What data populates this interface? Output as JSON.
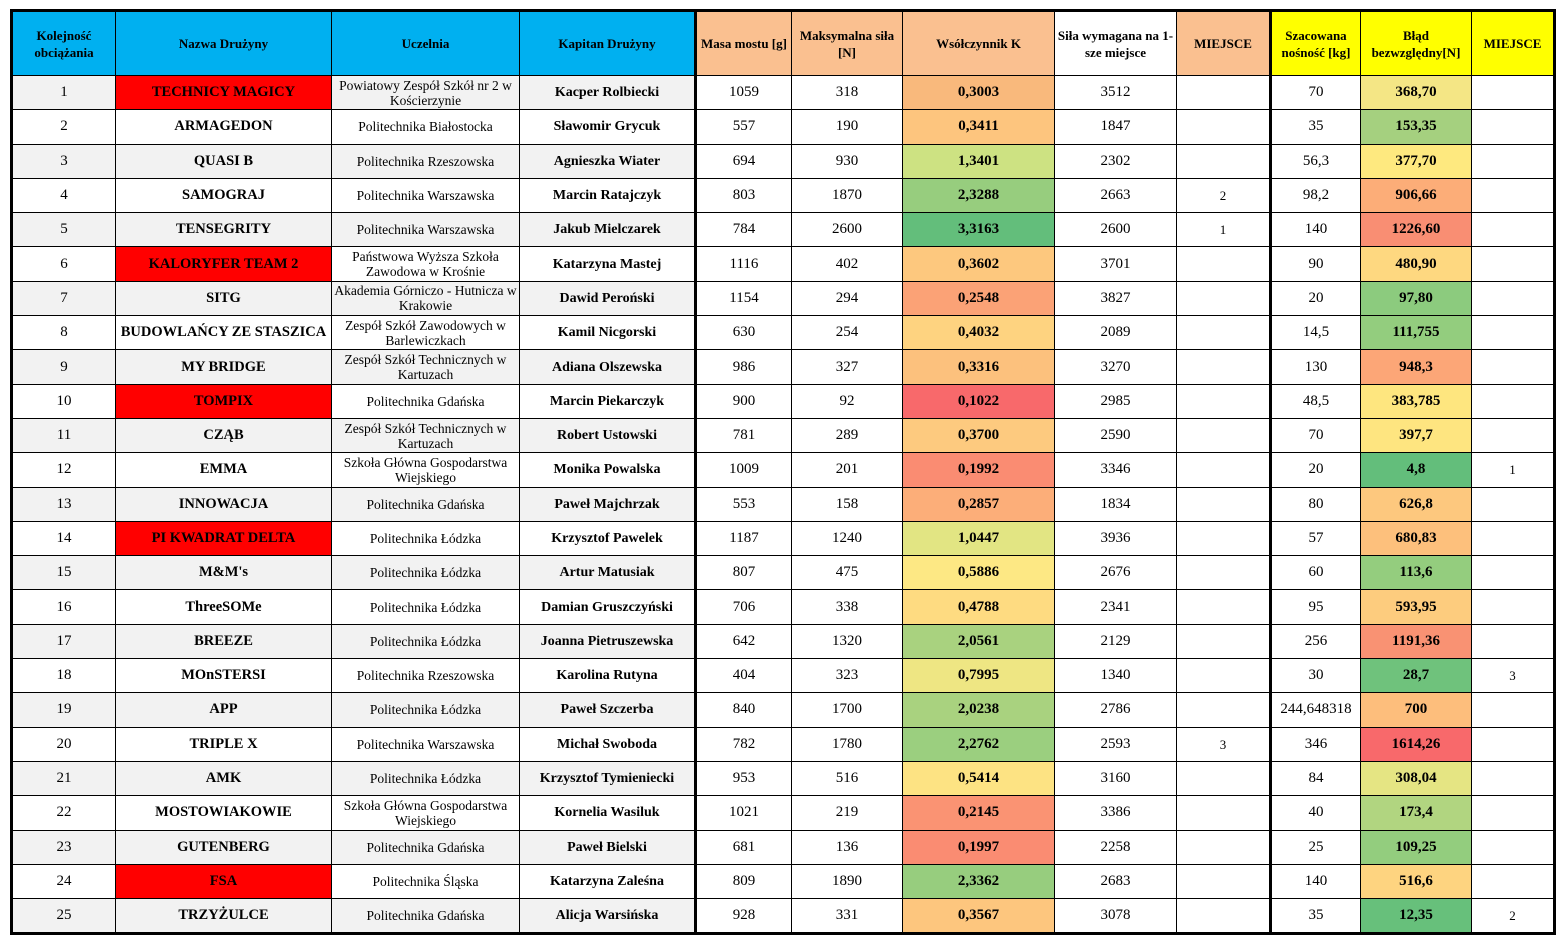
{
  "headers": {
    "kolejnosc": "Kolejność obciążania",
    "nazwa": "Nazwa Drużyny",
    "uczelnia": "Uczelnia",
    "kapitan": "Kapitan Drużyny",
    "masa": "Masa mostu [g]",
    "sila": "Maksymalna siła [N]",
    "k": "Wsółczynnik K",
    "wymagana": "Siła wymagana na 1-sze miejsce",
    "miejsce1": "MIEJSCE",
    "nosnosc": "Szacowana nośność [kg]",
    "blad": "Błąd bezwzględny[N]",
    "miejsce2": "MIEJSCE"
  },
  "colors": {
    "header_blue": "#00b0f0",
    "header_orange": "#fac090",
    "header_yellow": "#ffff00",
    "team_highlight_red": "#ff0000",
    "row_shade": "#f2f2f2"
  },
  "rows": [
    {
      "n": "1",
      "team": "TECHNICY MAGICY",
      "team_red": true,
      "uni": "Powiatowy Zespół Szkół     nr 2 w Kościerzynie",
      "captain": "Kacper Rolbiecki",
      "mass": "1059",
      "force": "318",
      "k": "0,3003",
      "k_color": "#f9b97c",
      "req": "3512",
      "place1": "",
      "capacity": "70",
      "error": "368,70",
      "err_color": "#f4e685",
      "place2": ""
    },
    {
      "n": "2",
      "team": "ARMAGEDON",
      "team_red": false,
      "uni": "Politechnika Białostocka",
      "captain": "Sławomir Grycuk",
      "mass": "557",
      "force": "190",
      "k": "0,3411",
      "k_color": "#fdc57e",
      "req": "1847",
      "place1": "",
      "capacity": "35",
      "error": "153,35",
      "err_color": "#a5d07f",
      "place2": ""
    },
    {
      "n": "3",
      "team": "QUASI B",
      "team_red": false,
      "uni": "Politechnika Rzeszowska",
      "captain": "Agnieszka Wiater",
      "mass": "694",
      "force": "930",
      "k": "1,3401",
      "k_color": "#cde282",
      "req": "2302",
      "place1": "",
      "capacity": "56,3",
      "error": "377,70",
      "err_color": "#fee97f",
      "place2": ""
    },
    {
      "n": "4",
      "team": "SAMOGRAJ",
      "team_red": false,
      "uni": "Politechnika Warszawska",
      "captain": "Marcin Ratajczyk",
      "mass": "803",
      "force": "1870",
      "k": "2,3288",
      "k_color": "#97cd7e",
      "req": "2663",
      "place1": "2",
      "capacity": "98,2",
      "error": "906,66",
      "err_color": "#fcad78",
      "place2": ""
    },
    {
      "n": "5",
      "team": "TENSEGRITY",
      "team_red": false,
      "uni": "Politechnika Warszawska",
      "captain": "Jakub Mielczarek",
      "mass": "784",
      "force": "2600",
      "k": "3,3163",
      "k_color": "#63be7b",
      "req": "2600",
      "place1": "1",
      "capacity": "140",
      "error": "1226,60",
      "err_color": "#f98e73",
      "place2": ""
    },
    {
      "n": "6",
      "team": "KALORYFER TEAM 2",
      "team_red": true,
      "uni": "Państwowa Wyższa Szkoła Zawodowa w Krośnie",
      "captain": "Katarzyna Mastej",
      "mass": "1116",
      "force": "402",
      "k": "0,3602",
      "k_color": "#fdc87e",
      "req": "3701",
      "place1": "",
      "capacity": "90",
      "error": "480,90",
      "err_color": "#fed880",
      "place2": ""
    },
    {
      "n": "7",
      "team": "SITG",
      "team_red": false,
      "uni": "Akademia Górniczo - Hutnicza w Krakowie",
      "captain": "Dawid Peroński",
      "mass": "1154",
      "force": "294",
      "k": "0,2548",
      "k_color": "#fba276",
      "req": "3827",
      "place1": "",
      "capacity": "20",
      "error": "97,80",
      "err_color": "#8ccb7e",
      "place2": ""
    },
    {
      "n": "8",
      "team": "BUDOWLAŃCY ZE STASZICA",
      "team_red": false,
      "uni": "Zespół Szkół Zawodowych w Barlewiczkach",
      "captain": "Kamil Nicgorski",
      "mass": "630",
      "force": "254",
      "k": "0,4032",
      "k_color": "#fed380",
      "req": "2089",
      "place1": "",
      "capacity": "14,5",
      "error": "111,755",
      "err_color": "#93cd7e",
      "place2": ""
    },
    {
      "n": "9",
      "team": "MY BRIDGE",
      "team_red": false,
      "uni": "Zespół Szkół Technicznych w Kartuzach",
      "captain": "Adiana Olszewska",
      "mass": "986",
      "force": "327",
      "k": "0,3316",
      "k_color": "#fcc17d",
      "req": "3270",
      "place1": "",
      "capacity": "130",
      "error": "948,3",
      "err_color": "#fca677",
      "place2": ""
    },
    {
      "n": "10",
      "team": "TOMPIX",
      "team_red": true,
      "uni": "Politechnika Gdańska",
      "captain": "Marcin Piekarczyk",
      "mass": "900",
      "force": "92",
      "k": "0,1022",
      "k_color": "#f8696b",
      "req": "2985",
      "place1": "",
      "capacity": "48,5",
      "error": "383,785",
      "err_color": "#fee67f",
      "place2": ""
    },
    {
      "n": "11",
      "team": "CZĄB",
      "team_red": false,
      "uni": "Zespół Szkół Technicznych w Kartuzach",
      "captain": "Robert Ustowski",
      "mass": "781",
      "force": "289",
      "k": "0,3700",
      "k_color": "#fdca7f",
      "req": "2590",
      "place1": "",
      "capacity": "70",
      "error": "397,7",
      "err_color": "#fee580",
      "place2": ""
    },
    {
      "n": "12",
      "team": "EMMA",
      "team_red": false,
      "uni": "Szkoła Główna Gospodarstwa Wiejskiego",
      "captain": "Monika Powalska",
      "mass": "1009",
      "force": "201",
      "k": "0,1992",
      "k_color": "#fa8c72",
      "req": "3346",
      "place1": "",
      "capacity": "20",
      "error": "4,8",
      "err_color": "#63be7b",
      "place2": "1"
    },
    {
      "n": "13",
      "team": "INNOWACJA",
      "team_red": false,
      "uni": "Politechnika Gdańska",
      "captain": "Paweł Majchrzak",
      "mass": "553",
      "force": "158",
      "k": "0,2857",
      "k_color": "#fcae79",
      "req": "1834",
      "place1": "",
      "capacity": "80",
      "error": "626,8",
      "err_color": "#fdc87e",
      "place2": ""
    },
    {
      "n": "14",
      "team": "PI KWADRAT DELTA",
      "team_red": true,
      "uni": "Politechnika Łódzka",
      "captain": "Krzysztof Pawelek",
      "mass": "1187",
      "force": "1240",
      "k": "1,0447",
      "k_color": "#e2e583",
      "req": "3936",
      "place1": "",
      "capacity": "57",
      "error": "680,83",
      "err_color": "#fdc07c",
      "place2": ""
    },
    {
      "n": "15",
      "team": "M&M's",
      "team_red": false,
      "uni": "Politechnika Łódzka",
      "captain": "Artur Matusiak",
      "mass": "807",
      "force": "475",
      "k": "0,5886",
      "k_color": "#fde884",
      "req": "2676",
      "place1": "",
      "capacity": "60",
      "error": "113,6",
      "err_color": "#94cd7e",
      "place2": ""
    },
    {
      "n": "16",
      "team": "ThreeSOMe",
      "team_red": false,
      "uni": "Politechnika Łódzka",
      "captain": "Damian Gruszczyński",
      "mass": "706",
      "force": "338",
      "k": "0,4788",
      "k_color": "#fedb81",
      "req": "2341",
      "place1": "",
      "capacity": "95",
      "error": "593,95",
      "err_color": "#fdcc7e",
      "place2": ""
    },
    {
      "n": "17",
      "team": "BREEZE",
      "team_red": false,
      "uni": "Politechnika Łódzka",
      "captain": "Joanna Pietruszewska",
      "mass": "642",
      "force": "1320",
      "k": "2,0561",
      "k_color": "#a9d27f",
      "req": "2129",
      "place1": "",
      "capacity": "256",
      "error": "1191,36",
      "err_color": "#f99273",
      "place2": ""
    },
    {
      "n": "18",
      "team": "MOnSTERSI",
      "team_red": false,
      "uni": "Politechnika Rzeszowska",
      "captain": "Karolina Rutyna",
      "mass": "404",
      "force": "323",
      "k": "0,7995",
      "k_color": "#eee683",
      "req": "1340",
      "place1": "",
      "capacity": "30",
      "error": "28,7",
      "err_color": "#6fc27c",
      "place2": "3"
    },
    {
      "n": "19",
      "team": "APP",
      "team_red": false,
      "uni": "Politechnika Łódzka",
      "captain": "Paweł Szczerba",
      "mass": "840",
      "force": "1700",
      "k": "2,0238",
      "k_color": "#a9d27f",
      "req": "2786",
      "place1": "",
      "capacity": "244,648318",
      "error": "700",
      "err_color": "#fdbe7c",
      "place2": ""
    },
    {
      "n": "20",
      "team": "TRIPLE X",
      "team_red": false,
      "uni": "Politechnika Warszawska",
      "captain": "Michał Swoboda",
      "mass": "782",
      "force": "1780",
      "k": "2,2762",
      "k_color": "#9bcf7f",
      "req": "2593",
      "place1": "3",
      "capacity": "346",
      "error": "1614,26",
      "err_color": "#f8696b",
      "place2": ""
    },
    {
      "n": "21",
      "team": "AMK",
      "team_red": false,
      "uni": "Politechnika Łódzka",
      "captain": "Krzysztof Tymieniecki",
      "mass": "953",
      "force": "516",
      "k": "0,5414",
      "k_color": "#fde383",
      "req": "3160",
      "place1": "",
      "capacity": "84",
      "error": "308,04",
      "err_color": "#e5e583",
      "place2": ""
    },
    {
      "n": "22",
      "team": "MOSTOWIAKOWIE",
      "team_red": false,
      "uni": "Szkoła Główna Gospodarstwa Wiejskiego",
      "captain": "Kornelia Wasiluk",
      "mass": "1021",
      "force": "219",
      "k": "0,2145",
      "k_color": "#fa9373",
      "req": "3386",
      "place1": "",
      "capacity": "40",
      "error": "173,4",
      "err_color": "#b1d580",
      "place2": ""
    },
    {
      "n": "23",
      "team": "GUTENBERG",
      "team_red": false,
      "uni": "Politechnika Gdańska",
      "captain": "Paweł Bielski",
      "mass": "681",
      "force": "136",
      "k": "0,1997",
      "k_color": "#fa8c72",
      "req": "2258",
      "place1": "",
      "capacity": "25",
      "error": "109,25",
      "err_color": "#93cd7e",
      "place2": ""
    },
    {
      "n": "24",
      "team": "FSA",
      "team_red": true,
      "uni": "Politechnika Śląska",
      "captain": "Katarzyna Zaleśna",
      "mass": "809",
      "force": "1890",
      "k": "2,3362",
      "k_color": "#97cd7e",
      "req": "2683",
      "place1": "",
      "capacity": "140",
      "error": "516,6",
      "err_color": "#fed480",
      "place2": ""
    },
    {
      "n": "25",
      "team": "TRZYŻULCE",
      "team_red": false,
      "uni": "Politechnika Gdańska",
      "captain": "Alicja Warsińska",
      "mass": "928",
      "force": "331",
      "k": "0,3567",
      "k_color": "#fdc67e",
      "req": "3078",
      "place1": "",
      "capacity": "35",
      "error": "12,35",
      "err_color": "#67c07b",
      "place2": "2"
    }
  ]
}
